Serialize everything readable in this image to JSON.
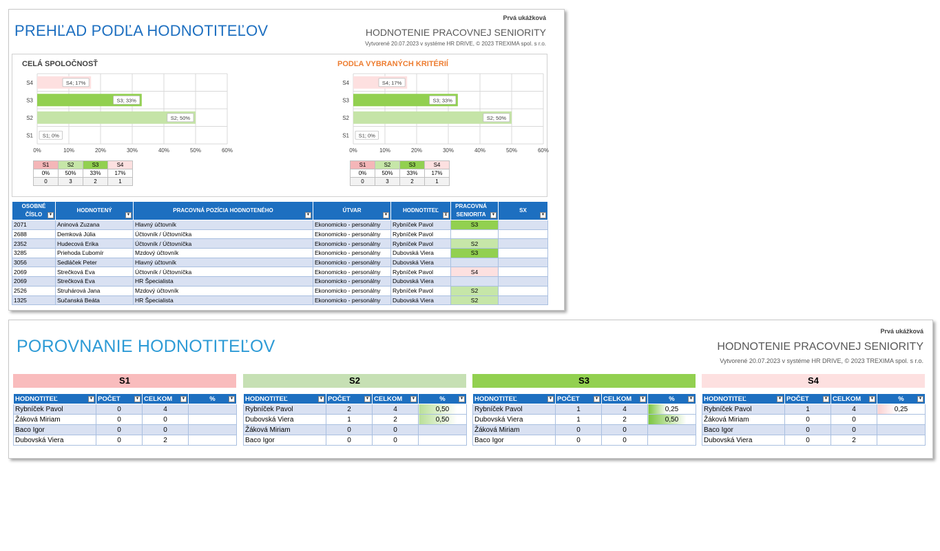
{
  "sheet1": {
    "sample": "Prvá ukážková",
    "title": "PREHĽAD PODĽA HODNOTITEĽOV",
    "subtitle": "HODNOTENIE PRACOVNEJ SENIORITY",
    "credits": "Vytvorené 20.07.2023 v systéme HR DRIVE, © 2023 TREXIMA spol. s r.o.",
    "title_color": "#1d6fc0"
  },
  "chart_data": [
    {
      "type": "bar",
      "orientation": "horizontal",
      "title": "CELÁ SPOLOČNOSŤ",
      "categories": [
        "S1",
        "S2",
        "S3",
        "S4"
      ],
      "values": [
        0,
        50,
        33,
        17
      ],
      "data_labels": [
        "S1; 0%",
        "S2; 50%",
        "S3; 33%",
        "S4; 17%"
      ],
      "x_ticks": [
        "0%",
        "10%",
        "20%",
        "30%",
        "40%",
        "50%",
        "60%"
      ],
      "xlim": [
        0,
        60
      ],
      "grid": true,
      "colors": [
        "#f4b6b8",
        "#c5e4a7",
        "#92d050",
        "#fde0e0"
      ],
      "summary_table": {
        "headers": [
          "S1",
          "S2",
          "S3",
          "S4"
        ],
        "percent": [
          "0%",
          "50%",
          "33%",
          "17%"
        ],
        "count": [
          "0",
          "3",
          "2",
          "1"
        ]
      }
    },
    {
      "type": "bar",
      "orientation": "horizontal",
      "title": "PODĽA VYBRANÝCH KRITÉRIÍ",
      "categories": [
        "S1",
        "S2",
        "S3",
        "S4"
      ],
      "values": [
        0,
        50,
        33,
        17
      ],
      "data_labels": [
        "S1; 0%",
        "S2; 50%",
        "S3; 33%",
        "S4; 17%"
      ],
      "x_ticks": [
        "0%",
        "10%",
        "20%",
        "30%",
        "40%",
        "50%",
        "60%"
      ],
      "xlim": [
        0,
        60
      ],
      "grid": true,
      "colors": [
        "#f4b6b8",
        "#c5e4a7",
        "#92d050",
        "#fde0e0"
      ],
      "summary_table": {
        "headers": [
          "S1",
          "S2",
          "S3",
          "S4"
        ],
        "percent": [
          "0%",
          "50%",
          "33%",
          "17%"
        ],
        "count": [
          "0",
          "3",
          "2",
          "1"
        ]
      }
    }
  ],
  "main_table": {
    "headers": [
      "OSOBNÉ ČÍSLO",
      "HODNOTENÝ",
      "PRACOVNÁ POZÍCIA HODNOTENÉHO",
      "ÚTVAR",
      "HODNOTITEĽ",
      "PRACOVNÁ SENIORITA",
      "SX"
    ],
    "rows": [
      {
        "id": "2071",
        "name": "Aninová Zuzana",
        "position": "Hlavný účtovník",
        "unit": "Ekonomicko - personálny",
        "rater": "Rybníček Pavol",
        "seniority": "S3",
        "sx": ""
      },
      {
        "id": "2688",
        "name": "Demková Júlia",
        "position": "Účtovník / Účtovníčka",
        "unit": "Ekonomicko - personálny",
        "rater": "Rybníček Pavol",
        "seniority": "",
        "sx": ""
      },
      {
        "id": "2352",
        "name": "Hudecová Erika",
        "position": "Účtovník / Účtovníčka",
        "unit": "Ekonomicko - personálny",
        "rater": "Rybníček Pavol",
        "seniority": "S2",
        "sx": ""
      },
      {
        "id": "3285",
        "name": "Priehoda Ľubomír",
        "position": "Mzdový účtovník",
        "unit": "Ekonomicko - personálny",
        "rater": "Dubovská Viera",
        "seniority": "S3",
        "sx": ""
      },
      {
        "id": "3056",
        "name": "Sedláček Peter",
        "position": "Hlavný účtovník",
        "unit": "Ekonomicko - personálny",
        "rater": "Dubovská Viera",
        "seniority": "",
        "sx": ""
      },
      {
        "id": "2069",
        "name": "Strečková Eva",
        "position": "Účtovník / Účtovníčka",
        "unit": "Ekonomicko - personálny",
        "rater": "Rybníček Pavol",
        "seniority": "S4",
        "sx": ""
      },
      {
        "id": "2069",
        "name": "Strečková Eva",
        "position": "HR Špecialista",
        "unit": "Ekonomicko - personálny",
        "rater": "Dubovská Viera",
        "seniority": "",
        "sx": ""
      },
      {
        "id": "2526",
        "name": "Struhárová Jana",
        "position": "Mzdový účtovník",
        "unit": "Ekonomicko - personálny",
        "rater": "Rybníček Pavol",
        "seniority": "S2",
        "sx": ""
      },
      {
        "id": "1325",
        "name": "Sučanská Beáta",
        "position": "HR Špecialista",
        "unit": "Ekonomicko - personálny",
        "rater": "Dubovská Viera",
        "seniority": "S2",
        "sx": ""
      }
    ]
  },
  "sheet2": {
    "sample": "Prvá ukážková",
    "title": "POROVNANIE HODNOTITEĽOV",
    "subtitle": "HODNOTENIE PRACOVNEJ SENIORITY",
    "credits": "Vytvorené 20.07.2023 v systéme HR DRIVE, © 2023 TREXIMA spol. s r.o.",
    "title_color": "#2e9bd6",
    "table_headers": [
      "HODNOTITEĽ",
      "POČET",
      "CELKOM",
      "%"
    ],
    "sections": [
      {
        "label": "S1",
        "color": "#f9bcbd",
        "bar_color": "#f4b6b8",
        "rows": [
          {
            "rater": "Rybníček Pavol",
            "count": "0",
            "total": "4",
            "pct": "",
            "ratio": 0
          },
          {
            "rater": "Žáková Miriam",
            "count": "0",
            "total": "0",
            "pct": "",
            "ratio": 0
          },
          {
            "rater": "Baco Igor",
            "count": "0",
            "total": "0",
            "pct": "",
            "ratio": 0
          },
          {
            "rater": "Dubovská Viera",
            "count": "0",
            "total": "2",
            "pct": "",
            "ratio": 0
          }
        ]
      },
      {
        "label": "S2",
        "color": "#c6e0b4",
        "bar_color": "#b9df98",
        "rows": [
          {
            "rater": "Rybníček Pavol",
            "count": "2",
            "total": "4",
            "pct": "0,50",
            "ratio": 0.5
          },
          {
            "rater": "Dubovská Viera",
            "count": "1",
            "total": "2",
            "pct": "0,50",
            "ratio": 0.5
          },
          {
            "rater": "Žáková Miriam",
            "count": "0",
            "total": "0",
            "pct": "",
            "ratio": 0
          },
          {
            "rater": "Baco Igor",
            "count": "0",
            "total": "0",
            "pct": "",
            "ratio": 0
          }
        ]
      },
      {
        "label": "S3",
        "color": "#92d050",
        "bar_color": "#7cc540",
        "rows": [
          {
            "rater": "Rybníček Pavol",
            "count": "1",
            "total": "4",
            "pct": "0,25",
            "ratio": 0.25
          },
          {
            "rater": "Dubovská Viera",
            "count": "1",
            "total": "2",
            "pct": "0,50",
            "ratio": 0.5
          },
          {
            "rater": "Žáková Miriam",
            "count": "0",
            "total": "0",
            "pct": "",
            "ratio": 0
          },
          {
            "rater": "Baco Igor",
            "count": "0",
            "total": "0",
            "pct": "",
            "ratio": 0
          }
        ]
      },
      {
        "label": "S4",
        "color": "#fde0e0",
        "bar_color": "#fbd0d0",
        "rows": [
          {
            "rater": "Rybníček Pavol",
            "count": "1",
            "total": "4",
            "pct": "0,25",
            "ratio": 0.25
          },
          {
            "rater": "Žáková Miriam",
            "count": "0",
            "total": "0",
            "pct": "",
            "ratio": 0
          },
          {
            "rater": "Baco Igor",
            "count": "0",
            "total": "0",
            "pct": "",
            "ratio": 0
          },
          {
            "rater": "Dubovská Viera",
            "count": "0",
            "total": "2",
            "pct": "",
            "ratio": 0
          }
        ]
      }
    ]
  },
  "seniority_colors": {
    "S1": "#f4b6b8",
    "S2": "#c6e6a8",
    "S3": "#92d050",
    "S4": "#fde0e0"
  }
}
